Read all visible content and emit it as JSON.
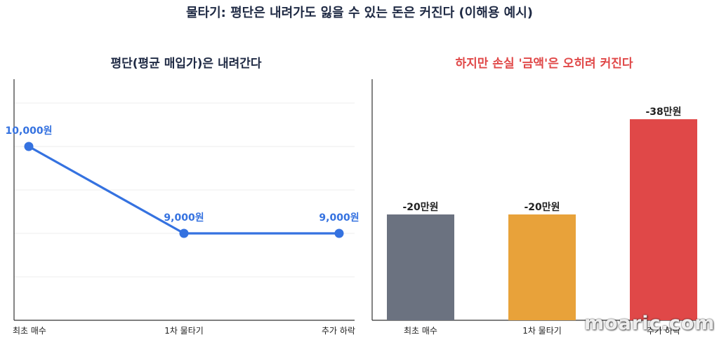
{
  "title": "물타기: 평단은 내려가도 잃을 수 있는 돈은 커진다 (이해용 예시)",
  "watermark": "moaric.com",
  "colors": {
    "line": "#3572e0",
    "label_blue": "#3572e0",
    "bar_gray": "#6b7280",
    "bar_orange": "#e8a23a",
    "bar_red": "#e04848",
    "axis": "#333333",
    "grid": "#ececec"
  },
  "chart_data": [
    {
      "type": "line",
      "title": "평단(평균 매입가)은 내려간다",
      "categories": [
        "최초 매수",
        "1차 물타기",
        "추가 하락"
      ],
      "values": [
        10000,
        9000,
        9000
      ],
      "data_labels": [
        "10,000원",
        "9,000원",
        "9,000원"
      ],
      "grid": true
    },
    {
      "type": "bar",
      "title": "하지만 손실 '금액'은 오히려 커진다",
      "categories": [
        "최초 매수",
        "1차 물타기",
        "추가 하락"
      ],
      "values": [
        -20,
        -20,
        -38
      ],
      "unit": "만원",
      "data_labels": [
        "-20만원",
        "-20만원",
        "-38만원"
      ],
      "bar_colors": [
        "#6b7280",
        "#e8a23a",
        "#e04848"
      ],
      "grid": false
    }
  ]
}
